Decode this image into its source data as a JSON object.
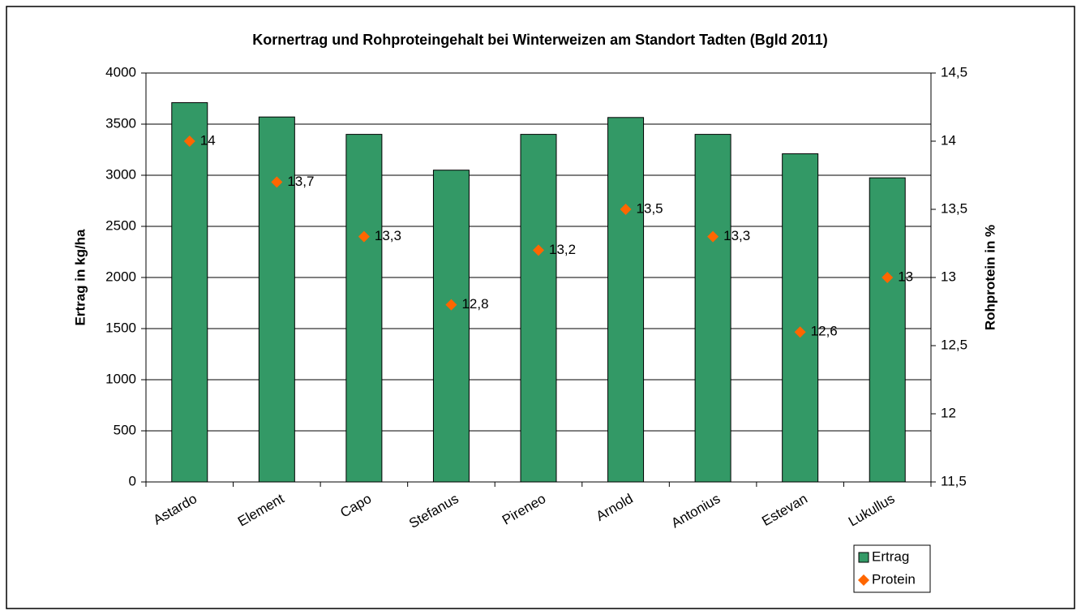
{
  "chart_data": {
    "type": "bar",
    "title": "Kornertrag und Rohproteingehalt bei Winterweizen am Standort Tadten (Bgld 2011)",
    "y_label": "Ertrag in kg/ha",
    "y2_label": "Rohprotein in %",
    "categories": [
      "Astardo",
      "Element",
      "Capo",
      "Stefanus",
      "Pireneo",
      "Arnold",
      "Antonius",
      "Estevan",
      "Lukullus"
    ],
    "series": [
      {
        "name": "Ertrag",
        "type": "bar",
        "color": "#339966",
        "values": [
          3710,
          3570,
          3400,
          3050,
          3400,
          3565,
          3400,
          3210,
          2975
        ]
      },
      {
        "name": "Protein",
        "type": "scatter",
        "axis": "y2",
        "color": "#ff6600",
        "values": [
          14,
          13.7,
          13.3,
          12.8,
          13.2,
          13.5,
          13.3,
          12.6,
          13
        ],
        "value_labels": [
          "14",
          "13,7",
          "13,3",
          "12,8",
          "13,2",
          "13,5",
          "13,3",
          "12,6",
          "13"
        ]
      }
    ],
    "ylim": [
      0,
      4000
    ],
    "yticks": [
      0,
      500,
      1000,
      1500,
      2000,
      2500,
      3000,
      3500,
      4000
    ],
    "y2lim": [
      11.5,
      14.5
    ],
    "y2ticks": [
      {
        "value": 11.5,
        "label": "11,5"
      },
      12,
      {
        "value": 12.5,
        "label": "12,5"
      },
      13,
      {
        "value": 13.5,
        "label": "13,5"
      },
      14,
      {
        "value": 14.5,
        "label": "14,5"
      }
    ],
    "grid": true,
    "legend": "bottom-right"
  }
}
